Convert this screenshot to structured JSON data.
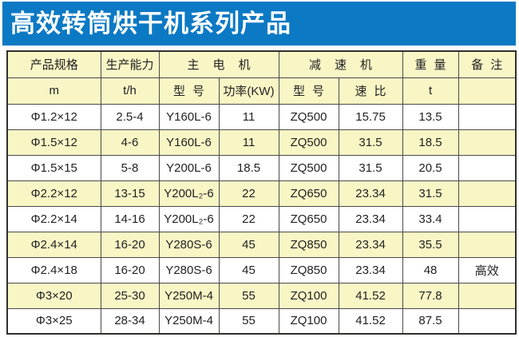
{
  "header": {
    "title": "高效转筒烘干机系列产品",
    "bg_color": "#0c79c4",
    "text_color": "#ffffff"
  },
  "table": {
    "header_bg": "#f9f6c6",
    "row_bg": "#ffffff",
    "row_alt_bg": "#f9f6c6",
    "border_color": "#4a4a48",
    "header_row1": [
      {
        "label": "产品规格"
      },
      {
        "label": "生产能力"
      },
      {
        "label": "主电机"
      },
      {
        "label": "减速机"
      },
      {
        "label": "重量"
      },
      {
        "label": "备注"
      }
    ],
    "header_row2": [
      "m",
      "t/h",
      "型号",
      "功率(KW)",
      "型号",
      "速比",
      "t",
      ""
    ],
    "rows": [
      [
        "Φ1.2×12",
        "2.5-4",
        "Y160L-6",
        "11",
        "ZQ500",
        "15.75",
        "13.5",
        ""
      ],
      [
        "Φ1.5×12",
        "4-6",
        "Y160L-6",
        "11",
        "ZQ500",
        "31.5",
        "18.5",
        ""
      ],
      [
        "Φ1.5×15",
        "5-8",
        "Y200L-6",
        "18.5",
        "ZQ500",
        "31.5",
        "20.5",
        ""
      ],
      [
        "Φ2.2×12",
        "13-15",
        "Y200L₂-6",
        "22",
        "ZQ650",
        "23.34",
        "31.5",
        ""
      ],
      [
        "Φ2.2×14",
        "14-16",
        "Y200L₂-6",
        "22",
        "ZQ650",
        "23.34",
        "33.4",
        ""
      ],
      [
        "Φ2.4×14",
        "16-20",
        "Y280S-6",
        "45",
        "ZQ850",
        "23.34",
        "35.5",
        ""
      ],
      [
        "Φ2.4×18",
        "16-20",
        "Y280S-6",
        "45",
        "ZQ850",
        "23.34",
        "48",
        "高效"
      ],
      [
        "Φ3×20",
        "25-30",
        "Y250M-4",
        "55",
        "ZQ100",
        "41.52",
        "77.8",
        ""
      ],
      [
        "Φ3×25",
        "28-34",
        "Y250M-4",
        "55",
        "ZQ100",
        "41.52",
        "87.5",
        ""
      ]
    ]
  }
}
